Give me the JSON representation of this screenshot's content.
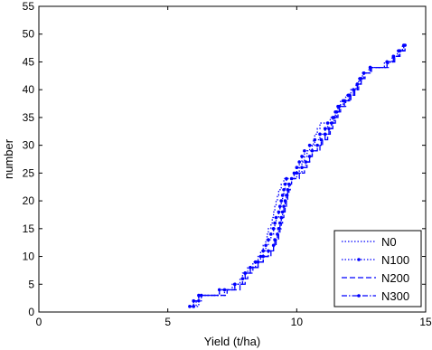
{
  "chart_data": {
    "type": "line",
    "xlabel": "Yield (t/ha)",
    "ylabel": "number",
    "xlim": [
      0,
      15
    ],
    "ylim": [
      0,
      55
    ],
    "x_ticks": [
      "0",
      "5",
      "10",
      "15"
    ],
    "y_ticks": [
      "0",
      "5",
      "10",
      "15",
      "20",
      "25",
      "30",
      "35",
      "40",
      "45",
      "50",
      "55"
    ],
    "grid": false,
    "legend_position": "bottom-right",
    "series": [
      {
        "name": "N0",
        "color": "#0000ff",
        "style": "dotted",
        "marker": "none",
        "points": [
          [
            6.0,
            1
          ],
          [
            6.1,
            2
          ],
          [
            6.2,
            3
          ],
          [
            7.0,
            4
          ],
          [
            7.5,
            5
          ],
          [
            7.8,
            6
          ],
          [
            7.9,
            7
          ],
          [
            8.1,
            8
          ],
          [
            8.3,
            9
          ],
          [
            8.5,
            10
          ],
          [
            8.6,
            11
          ],
          [
            8.7,
            12
          ],
          [
            8.8,
            13
          ],
          [
            8.85,
            14
          ],
          [
            8.9,
            15
          ],
          [
            9.0,
            16
          ],
          [
            9.05,
            17
          ],
          [
            9.1,
            18
          ],
          [
            9.15,
            19
          ],
          [
            9.2,
            20
          ],
          [
            9.25,
            21
          ],
          [
            9.3,
            22
          ],
          [
            9.4,
            23
          ],
          [
            9.5,
            24
          ],
          [
            9.9,
            25
          ],
          [
            10.1,
            26
          ],
          [
            10.2,
            27
          ],
          [
            10.3,
            28
          ],
          [
            10.4,
            29
          ],
          [
            10.6,
            30
          ],
          [
            10.65,
            31
          ],
          [
            10.7,
            32
          ],
          [
            10.8,
            33
          ],
          [
            10.9,
            34
          ],
          [
            11.3,
            35
          ],
          [
            11.5,
            36
          ],
          [
            11.6,
            37
          ],
          [
            11.7,
            38
          ],
          [
            11.9,
            39
          ],
          [
            12.1,
            40
          ],
          [
            12.3,
            41
          ],
          [
            12.4,
            42
          ],
          [
            12.55,
            43
          ],
          [
            12.8,
            44
          ],
          [
            13.4,
            45
          ],
          [
            13.7,
            46
          ],
          [
            13.9,
            47
          ],
          [
            14.1,
            48
          ]
        ]
      },
      {
        "name": "N100",
        "color": "#0000ff",
        "style": "dotted",
        "marker": "dot",
        "points": [
          [
            6.0,
            1
          ],
          [
            6.2,
            2
          ],
          [
            6.3,
            3
          ],
          [
            7.2,
            4
          ],
          [
            7.6,
            5
          ],
          [
            7.9,
            6
          ],
          [
            8.0,
            7
          ],
          [
            8.2,
            8
          ],
          [
            8.4,
            9
          ],
          [
            8.6,
            10
          ],
          [
            8.7,
            11
          ],
          [
            8.8,
            12
          ],
          [
            8.9,
            13
          ],
          [
            9.0,
            14
          ],
          [
            9.1,
            15
          ],
          [
            9.15,
            16
          ],
          [
            9.2,
            17
          ],
          [
            9.3,
            18
          ],
          [
            9.35,
            19
          ],
          [
            9.4,
            20
          ],
          [
            9.45,
            21
          ],
          [
            9.5,
            22
          ],
          [
            9.55,
            23
          ],
          [
            9.6,
            24
          ],
          [
            9.9,
            25
          ],
          [
            10.0,
            26
          ],
          [
            10.1,
            27
          ],
          [
            10.2,
            28
          ],
          [
            10.3,
            29
          ],
          [
            10.5,
            30
          ],
          [
            10.7,
            31
          ],
          [
            10.9,
            32
          ],
          [
            11.1,
            33
          ],
          [
            11.2,
            34
          ],
          [
            11.4,
            35
          ],
          [
            11.5,
            36
          ],
          [
            11.6,
            37
          ],
          [
            11.8,
            38
          ],
          [
            12.0,
            39
          ],
          [
            12.2,
            40
          ],
          [
            12.35,
            41
          ],
          [
            12.5,
            42
          ],
          [
            12.6,
            43
          ],
          [
            12.85,
            44
          ],
          [
            13.5,
            45
          ],
          [
            13.75,
            46
          ],
          [
            13.95,
            47
          ],
          [
            14.15,
            48
          ]
        ]
      },
      {
        "name": "N200",
        "color": "#0000ff",
        "style": "dashed",
        "marker": "none",
        "points": [
          [
            5.9,
            1
          ],
          [
            6.0,
            2
          ],
          [
            6.2,
            3
          ],
          [
            7.3,
            4
          ],
          [
            7.8,
            5
          ],
          [
            8.0,
            6
          ],
          [
            8.1,
            7
          ],
          [
            8.3,
            8
          ],
          [
            8.5,
            9
          ],
          [
            8.7,
            10
          ],
          [
            9.0,
            11
          ],
          [
            9.1,
            12
          ],
          [
            9.2,
            13
          ],
          [
            9.3,
            14
          ],
          [
            9.35,
            15
          ],
          [
            9.4,
            16
          ],
          [
            9.45,
            17
          ],
          [
            9.5,
            18
          ],
          [
            9.55,
            19
          ],
          [
            9.6,
            20
          ],
          [
            9.65,
            21
          ],
          [
            9.7,
            22
          ],
          [
            9.75,
            23
          ],
          [
            9.8,
            24
          ],
          [
            10.1,
            25
          ],
          [
            10.3,
            26
          ],
          [
            10.4,
            27
          ],
          [
            10.5,
            28
          ],
          [
            10.6,
            29
          ],
          [
            10.9,
            30
          ],
          [
            11.0,
            31
          ],
          [
            11.2,
            32
          ],
          [
            11.3,
            33
          ],
          [
            11.4,
            34
          ],
          [
            11.5,
            35
          ],
          [
            11.6,
            36
          ],
          [
            11.7,
            37
          ],
          [
            11.9,
            38
          ],
          [
            12.1,
            39
          ],
          [
            12.25,
            40
          ],
          [
            12.4,
            41
          ],
          [
            12.5,
            42
          ],
          [
            12.65,
            43
          ],
          [
            12.9,
            44
          ],
          [
            13.55,
            45
          ],
          [
            13.8,
            46
          ],
          [
            14.0,
            47
          ],
          [
            14.15,
            48
          ]
        ]
      },
      {
        "name": "N300",
        "color": "#0000ff",
        "style": "dashdot",
        "marker": "dot",
        "points": [
          [
            5.85,
            1
          ],
          [
            6.0,
            2
          ],
          [
            6.2,
            3
          ],
          [
            7.0,
            4
          ],
          [
            7.6,
            5
          ],
          [
            7.9,
            6
          ],
          [
            8.0,
            7
          ],
          [
            8.2,
            8
          ],
          [
            8.5,
            9
          ],
          [
            8.7,
            10
          ],
          [
            8.9,
            11
          ],
          [
            9.1,
            12
          ],
          [
            9.15,
            13
          ],
          [
            9.25,
            14
          ],
          [
            9.3,
            15
          ],
          [
            9.35,
            16
          ],
          [
            9.4,
            17
          ],
          [
            9.45,
            18
          ],
          [
            9.5,
            19
          ],
          [
            9.55,
            20
          ],
          [
            9.6,
            21
          ],
          [
            9.65,
            22
          ],
          [
            9.7,
            23
          ],
          [
            9.8,
            24
          ],
          [
            10.0,
            25
          ],
          [
            10.2,
            26
          ],
          [
            10.35,
            27
          ],
          [
            10.5,
            28
          ],
          [
            10.6,
            29
          ],
          [
            10.8,
            30
          ],
          [
            10.95,
            31
          ],
          [
            11.1,
            32
          ],
          [
            11.25,
            33
          ],
          [
            11.35,
            34
          ],
          [
            11.45,
            35
          ],
          [
            11.55,
            36
          ],
          [
            11.65,
            37
          ],
          [
            11.85,
            38
          ],
          [
            12.05,
            39
          ],
          [
            12.2,
            40
          ],
          [
            12.35,
            41
          ],
          [
            12.45,
            42
          ],
          [
            12.6,
            43
          ],
          [
            12.85,
            44
          ],
          [
            13.5,
            45
          ],
          [
            13.75,
            46
          ],
          [
            14.0,
            47
          ],
          [
            14.2,
            48
          ]
        ]
      }
    ]
  }
}
